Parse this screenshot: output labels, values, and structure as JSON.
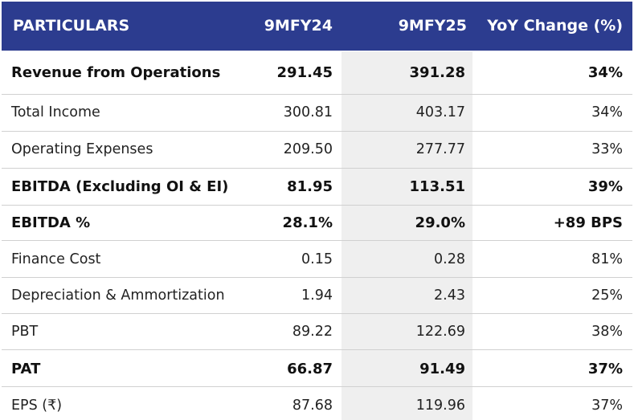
{
  "header": {
    "particulars": "PARTICULARS",
    "col_a": "9MFY24",
    "col_b": "9MFY25",
    "col_c": "YoY Change (%)"
  },
  "rows": [
    {
      "label": "Revenue from Operations",
      "a": "291.45",
      "b": "391.28",
      "c": "34%",
      "bold": true
    },
    {
      "label": "Total Income",
      "a": "300.81",
      "b": "403.17",
      "c": "34%",
      "bold": false
    },
    {
      "label": "Operating Expenses",
      "a": "209.50",
      "b": "277.77",
      "c": "33%",
      "bold": false
    },
    {
      "label": "EBITDA (Excluding OI & EI)",
      "a": "81.95",
      "b": "113.51",
      "c": "39%",
      "bold": true
    },
    {
      "label": "EBITDA %",
      "a": "28.1%",
      "b": "29.0%",
      "c": "+89 BPS",
      "bold": true
    },
    {
      "label": "Finance Cost",
      "a": "0.15",
      "b": "0.28",
      "c": "81%",
      "bold": false
    },
    {
      "label": "Depreciation & Ammortization",
      "a": "1.94",
      "b": "2.43",
      "c": "25%",
      "bold": false
    },
    {
      "label": "PBT",
      "a": "89.22",
      "b": "122.69",
      "c": "38%",
      "bold": false
    },
    {
      "label": "PAT",
      "a": "66.87",
      "b": "91.49",
      "c": "37%",
      "bold": true
    },
    {
      "label": "EPS (₹)",
      "a": "87.68",
      "b": "119.96",
      "c": "37%",
      "bold": false
    }
  ],
  "colors": {
    "header_bg": "#2c3c8f",
    "header_text": "#ffffff",
    "highlight_column_bg": "#efefef",
    "row_divider": "#d0d0d0"
  }
}
